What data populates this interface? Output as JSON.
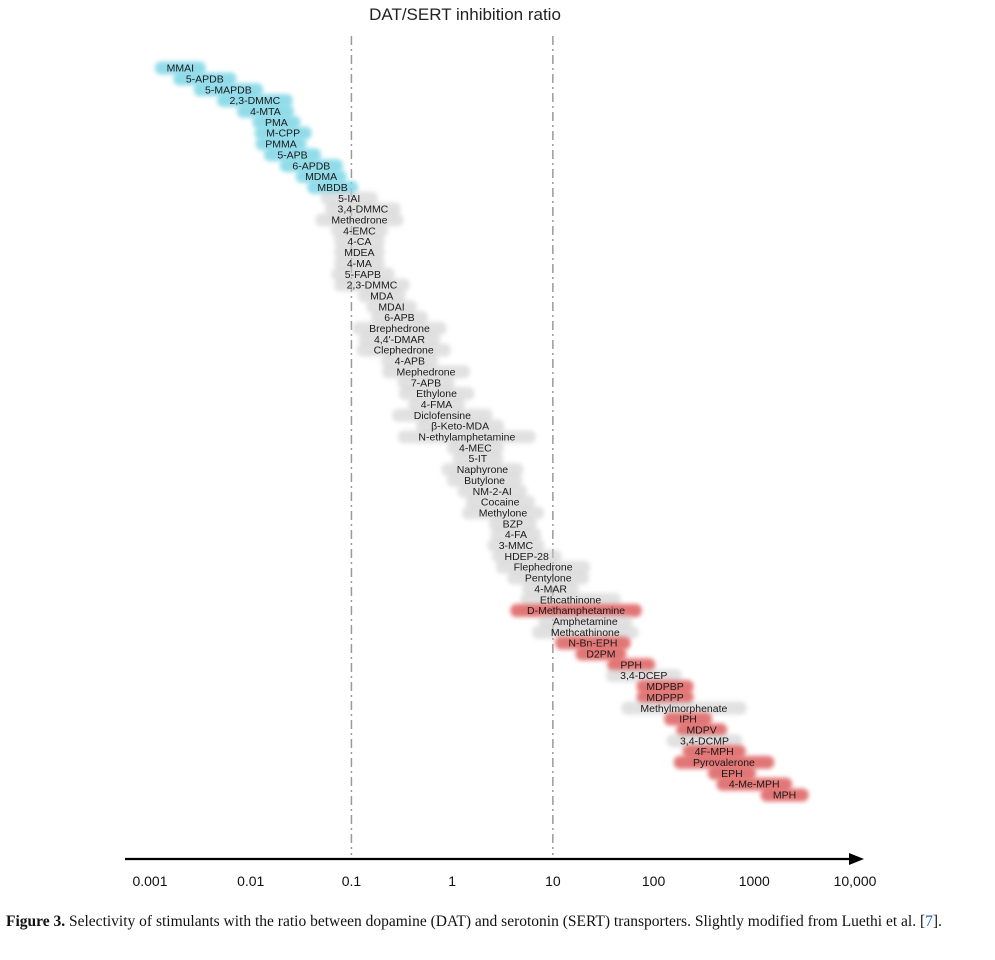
{
  "chart_data": {
    "type": "ranked-bar",
    "title": "DAT/SERT inhibition ratio",
    "x_scale": "log",
    "xlim": [
      0.001,
      10000
    ],
    "xticks": [
      "0.001",
      "0.01",
      "0.1",
      "1",
      "10",
      "100",
      "1000",
      "10,000"
    ],
    "reference_lines": [
      0.1,
      10
    ],
    "colors": {
      "serotonergic": "#7fd6e6",
      "mixed": "#c9c9c9",
      "dopaminergic": "#dd5f5f"
    },
    "items": [
      {
        "label": "MMAI",
        "ratio": 0.002,
        "group": "serotonergic"
      },
      {
        "label": "5-APDB",
        "ratio": 0.0035,
        "group": "serotonergic"
      },
      {
        "label": "5-MAPDB",
        "ratio": 0.006,
        "group": "serotonergic"
      },
      {
        "label": "2,3-DMMC",
        "ratio": 0.011,
        "group": "serotonergic"
      },
      {
        "label": "4-MTA",
        "ratio": 0.014,
        "group": "serotonergic"
      },
      {
        "label": "PMA",
        "ratio": 0.018,
        "group": "serotonergic"
      },
      {
        "label": "M-CPP",
        "ratio": 0.021,
        "group": "serotonergic"
      },
      {
        "label": "PMMA",
        "ratio": 0.02,
        "group": "serotonergic"
      },
      {
        "label": "5-APB",
        "ratio": 0.026,
        "group": "serotonergic"
      },
      {
        "label": "6-APDB",
        "ratio": 0.04,
        "group": "serotonergic"
      },
      {
        "label": "MDMA",
        "ratio": 0.05,
        "group": "serotonergic"
      },
      {
        "label": "MBDB",
        "ratio": 0.065,
        "group": "serotonergic"
      },
      {
        "label": "5-IAI",
        "ratio": 0.095,
        "group": "mixed"
      },
      {
        "label": "3,4-DMMC",
        "ratio": 0.13,
        "group": "mixed"
      },
      {
        "label": "Methedrone",
        "ratio": 0.12,
        "group": "mixed"
      },
      {
        "label": "4-EMC",
        "ratio": 0.12,
        "group": "mixed"
      },
      {
        "label": "4-CA",
        "ratio": 0.12,
        "group": "mixed"
      },
      {
        "label": "MDEA",
        "ratio": 0.12,
        "group": "mixed"
      },
      {
        "label": "4-MA",
        "ratio": 0.12,
        "group": "mixed"
      },
      {
        "label": "5-FAPB",
        "ratio": 0.13,
        "group": "mixed"
      },
      {
        "label": "2,3-DMMC",
        "ratio": 0.16,
        "group": "mixed"
      },
      {
        "label": "MDA",
        "ratio": 0.2,
        "group": "mixed"
      },
      {
        "label": "MDAI",
        "ratio": 0.25,
        "group": "mixed"
      },
      {
        "label": "6-APB",
        "ratio": 0.3,
        "group": "mixed"
      },
      {
        "label": "Brephedrone",
        "ratio": 0.3,
        "group": "mixed"
      },
      {
        "label": "4,4'-DMAR",
        "ratio": 0.3,
        "group": "mixed"
      },
      {
        "label": "Clephedrone",
        "ratio": 0.33,
        "group": "mixed"
      },
      {
        "label": "4-APB",
        "ratio": 0.38,
        "group": "mixed"
      },
      {
        "label": "Mephedrone",
        "ratio": 0.55,
        "group": "mixed"
      },
      {
        "label": "7-APB",
        "ratio": 0.55,
        "group": "mixed"
      },
      {
        "label": "Ethylone",
        "ratio": 0.7,
        "group": "mixed"
      },
      {
        "label": "4-FMA",
        "ratio": 0.7,
        "group": "mixed"
      },
      {
        "label": "Diclofensine",
        "ratio": 0.8,
        "group": "mixed"
      },
      {
        "label": "β-Keto-MDA",
        "ratio": 1.2,
        "group": "mixed"
      },
      {
        "label": "N-ethylamphetamine",
        "ratio": 1.4,
        "group": "mixed"
      },
      {
        "label": "4-MEC",
        "ratio": 1.7,
        "group": "mixed"
      },
      {
        "label": "5-IT",
        "ratio": 1.8,
        "group": "mixed"
      },
      {
        "label": "Naphyrone",
        "ratio": 2.0,
        "group": "mixed"
      },
      {
        "label": "Butylone",
        "ratio": 2.1,
        "group": "mixed"
      },
      {
        "label": "NM-2-AI",
        "ratio": 2.5,
        "group": "mixed"
      },
      {
        "label": "Cocaine",
        "ratio": 3.0,
        "group": "mixed"
      },
      {
        "label": "Methylone",
        "ratio": 3.2,
        "group": "mixed"
      },
      {
        "label": "BZP",
        "ratio": 4.0,
        "group": "mixed"
      },
      {
        "label": "4-FA",
        "ratio": 4.3,
        "group": "mixed"
      },
      {
        "label": "3-MMC",
        "ratio": 4.3,
        "group": "mixed"
      },
      {
        "label": "HDEP-28",
        "ratio": 5.5,
        "group": "mixed"
      },
      {
        "label": "Flephedrone",
        "ratio": 8.0,
        "group": "mixed"
      },
      {
        "label": "Pentylone",
        "ratio": 9.0,
        "group": "mixed"
      },
      {
        "label": "4-MAR",
        "ratio": 9.5,
        "group": "mixed"
      },
      {
        "label": "Ethcathinone",
        "ratio": 15,
        "group": "mixed"
      },
      {
        "label": "D-Methamphetamine",
        "ratio": 17,
        "group": "dopaminergic"
      },
      {
        "label": "Amphetamine",
        "ratio": 21,
        "group": "mixed"
      },
      {
        "label": "Methcathinone",
        "ratio": 21,
        "group": "mixed"
      },
      {
        "label": "N-Bn-EPH",
        "ratio": 25,
        "group": "dopaminergic"
      },
      {
        "label": "D2PM",
        "ratio": 30,
        "group": "dopaminergic"
      },
      {
        "label": "PPH",
        "ratio": 60,
        "group": "dopaminergic"
      },
      {
        "label": "3,4-DCEP",
        "ratio": 80,
        "group": "mixed"
      },
      {
        "label": "MDPBP",
        "ratio": 130,
        "group": "dopaminergic"
      },
      {
        "label": "MDPPP",
        "ratio": 130,
        "group": "dopaminergic"
      },
      {
        "label": "Methylmorphenate",
        "ratio": 200,
        "group": "mixed"
      },
      {
        "label": "IPH",
        "ratio": 220,
        "group": "dopaminergic"
      },
      {
        "label": "MDPV",
        "ratio": 300,
        "group": "dopaminergic"
      },
      {
        "label": "3,4-DCMP",
        "ratio": 320,
        "group": "mixed"
      },
      {
        "label": "4F-MPH",
        "ratio": 400,
        "group": "dopaminergic"
      },
      {
        "label": "Pyrovalerone",
        "ratio": 500,
        "group": "dopaminergic"
      },
      {
        "label": "EPH",
        "ratio": 600,
        "group": "dopaminergic"
      },
      {
        "label": "4-Me-MPH",
        "ratio": 1000,
        "group": "dopaminergic"
      },
      {
        "label": "MPH",
        "ratio": 2000,
        "group": "dopaminergic"
      }
    ]
  },
  "caption": {
    "label": "Figure 3.",
    "text_before_ref": " Selectivity of stimulants with the ratio between dopamine (DAT) and serotonin (SERT) transporters. Slightly modified from Luethi et al. [",
    "ref": "7",
    "text_after_ref": "]."
  }
}
